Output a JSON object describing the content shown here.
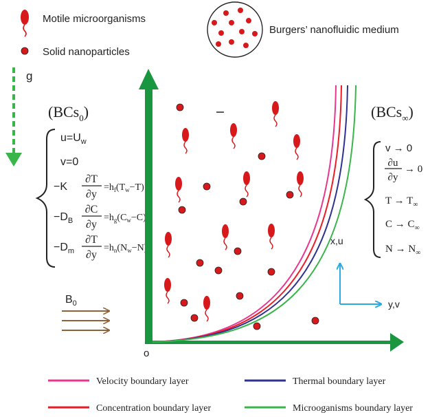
{
  "key": {
    "microorganisms": "Motile microorganisms",
    "nanoparticles": "Solid nanoparticles",
    "medium": "Burgers’ nanofluidic medium"
  },
  "gravity": "g",
  "field": "B",
  "field_sub": "0",
  "origin": "o",
  "axes": {
    "vertical": "x,u",
    "horizontal": "y,v"
  },
  "bc_wall": {
    "title": "(BCs",
    "title_sub": "0",
    "title_close": ")",
    "eq1_lhs": "u=U",
    "eq1_sub": "w",
    "eq2": "v=0",
    "eq3_pre": "−K",
    "eq3_num": "∂T",
    "eq3_den": "∂y",
    "eq3_rhs": "=h",
    "eq3_rhs_sub": "f",
    "eq3_tail": "(T",
    "eq3_tail_sub": "w",
    "eq3_end": "−T)",
    "eq4_pre": "−D",
    "eq4_pre_sub": "B",
    "eq4_num": "∂C",
    "eq4_den": "∂y",
    "eq4_rhs": "=h",
    "eq4_rhs_sub": "g",
    "eq4_tail": "(C",
    "eq4_tail_sub": "w",
    "eq4_end": "−C)",
    "eq5_pre": "−D",
    "eq5_pre_sub": "m",
    "eq5_num": "∂T",
    "eq5_den": "∂y",
    "eq5_rhs": "=h",
    "eq5_rhs_sub": "n",
    "eq5_tail": "(N",
    "eq5_tail_sub": "w",
    "eq5_end": "−N)"
  },
  "bc_inf": {
    "title": "(BCs",
    "title_sub": "∞",
    "title_close": ")",
    "eq1": "v → 0",
    "eq2_num": "∂u",
    "eq2_den": "∂y",
    "eq2_rhs": "→ 0",
    "eq3": "T → T",
    "eq3_sub": "∞",
    "eq4": "C → C",
    "eq4_sub": "∞",
    "eq5": "N → N",
    "eq5_sub": "∞"
  },
  "legend": [
    {
      "label": "Velocity boundary layer",
      "color": "#e8368f"
    },
    {
      "label": "Thermal boundary layer",
      "color": "#2e3192"
    },
    {
      "label": "Concentration boundary layer",
      "color": "#ed1c24"
    },
    {
      "label": "Microoganisms boundary layer",
      "color": "#39b54a"
    }
  ],
  "colors": {
    "axis": "#1a9641",
    "gravity": "#39b54a",
    "particle": "#d7191c",
    "field": "#8c6239",
    "frame": "#29abe2"
  }
}
